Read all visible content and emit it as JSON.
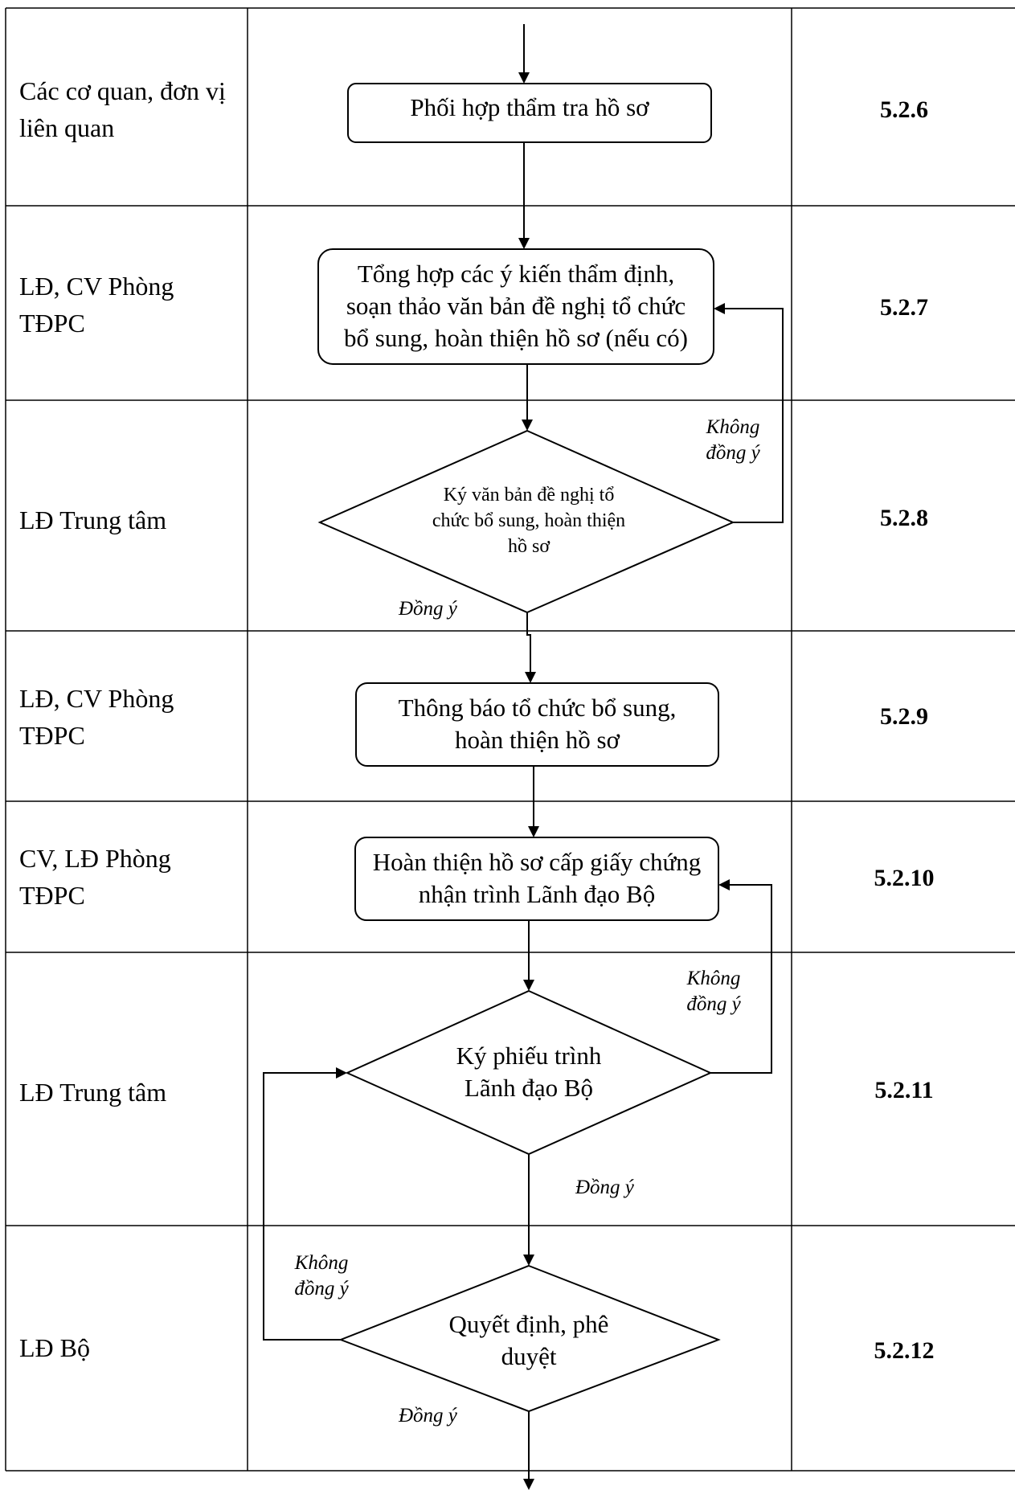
{
  "rows": [
    {
      "actor": "Các cơ quan, đơn vị liên quan",
      "code": "5.2.6"
    },
    {
      "actor": "LĐ, CV Phòng TĐPC",
      "code": "5.2.7"
    },
    {
      "actor": "LĐ Trung tâm",
      "code": "5.2.8"
    },
    {
      "actor": "LĐ, CV Phòng TĐPC",
      "code": "5.2.9"
    },
    {
      "actor": "CV, LĐ Phòng TĐPC",
      "code": "5.2.10"
    },
    {
      "actor": "LĐ Trung tâm",
      "code": "5.2.11"
    },
    {
      "actor": "LĐ Bộ",
      "code": "5.2.12"
    }
  ],
  "nodes": {
    "n1": "Phối hợp thẩm tra hồ sơ",
    "n2": "Tổng hợp các ý kiến thẩm định, soạn thảo văn bản đề nghị tổ chức bổ sung, hoàn thiện hồ sơ (nếu có)",
    "d1": "Ký văn bản đề nghị tổ chức bổ sung, hoàn thiện hồ sơ",
    "n3": "Thông báo tổ chức bổ sung, hoàn thiện hồ sơ",
    "n4": "Hoàn thiện hồ sơ cấp giấy chứng nhận trình Lãnh đạo Bộ",
    "d2": "Ký phiếu trình Lãnh đạo Bộ",
    "d3": "Quyết định, phê duyệt"
  },
  "conditions": {
    "d1_no": "Không đồng ý",
    "d1_yes": "Đồng ý",
    "d2_no": "Không đồng ý",
    "d2_yes": "Đồng ý",
    "d3_no": "Không đồng ý",
    "d3_yes": "Đồng ý"
  }
}
